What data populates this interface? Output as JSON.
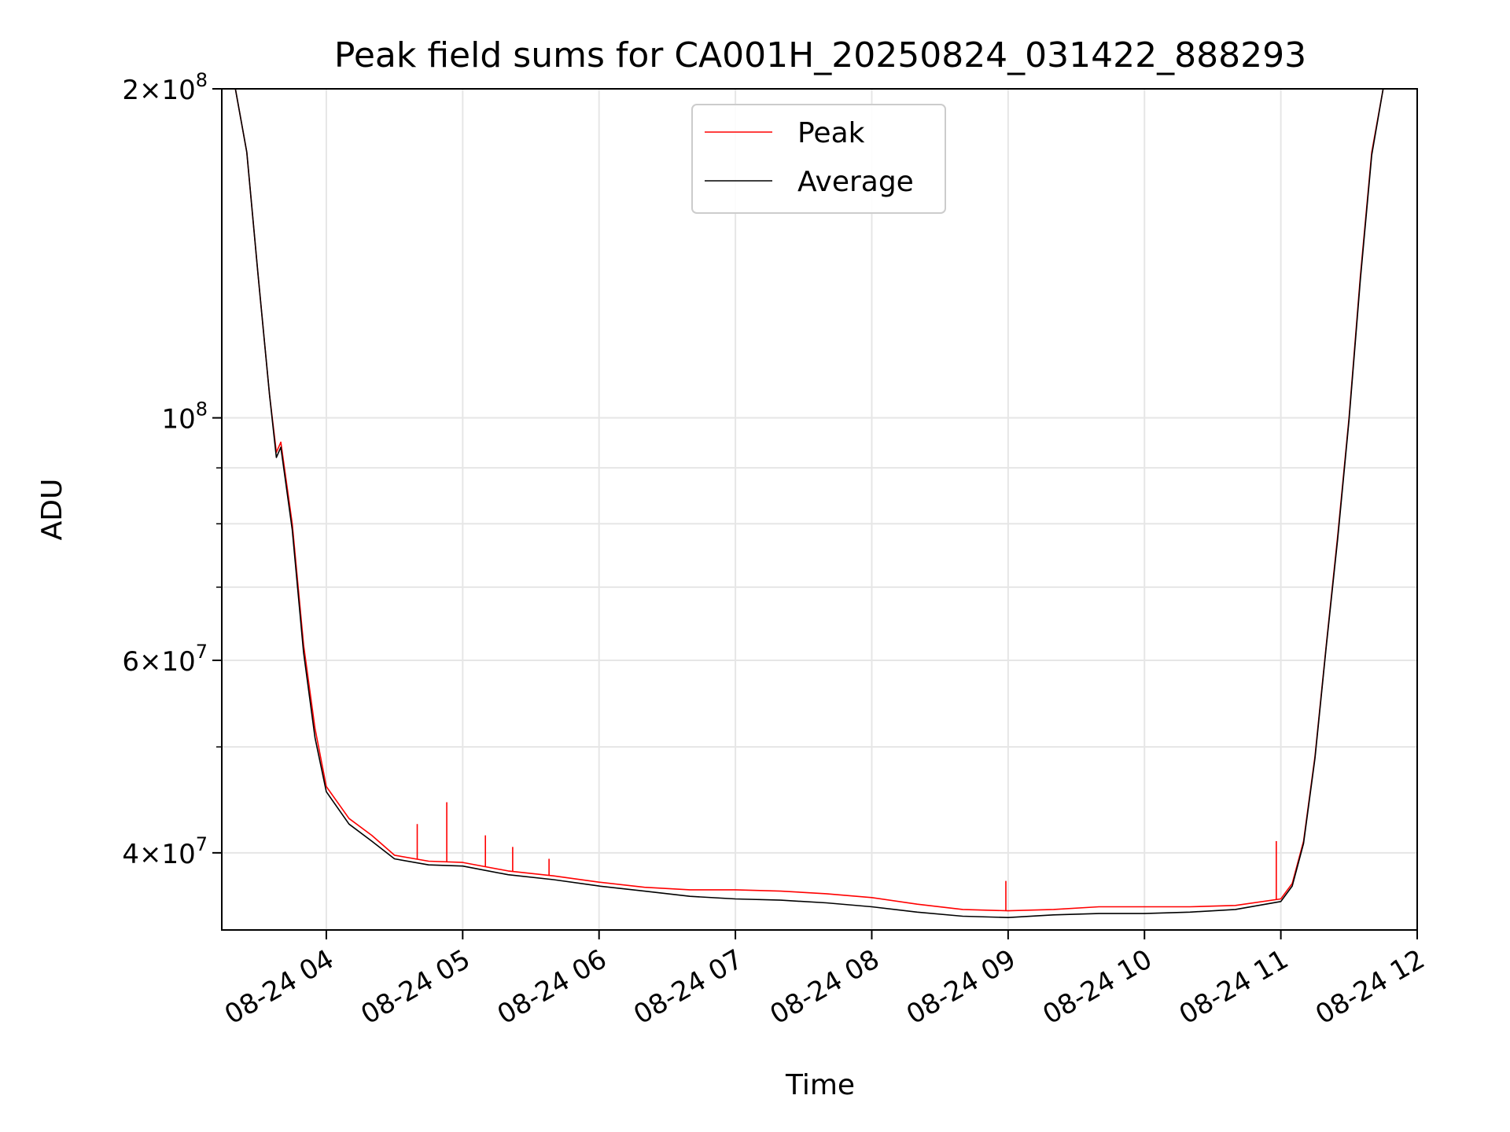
{
  "chart_data": {
    "type": "line",
    "title": "Peak field sums for CA001H_20250824_031422_888293",
    "xlabel": "Time",
    "ylabel": "ADU",
    "yscale": "log",
    "xlim": [
      "2025-08-24T03:14:00",
      "2025-08-24T12:00:00"
    ],
    "ylim": [
      34000000,
      200000000
    ],
    "grid": true,
    "legend_position": "upper center",
    "x_tick_labels": [
      "08-24 04",
      "08-24 05",
      "08-24 06",
      "08-24 07",
      "08-24 08",
      "08-24 09",
      "08-24 10",
      "08-24 11",
      "08-24 12"
    ],
    "x_ticks": [
      "2025-08-24T04:00",
      "2025-08-24T05:00",
      "2025-08-24T06:00",
      "2025-08-24T07:00",
      "2025-08-24T08:00",
      "2025-08-24T09:00",
      "2025-08-24T10:00",
      "2025-08-24T11:00",
      "2025-08-24T12:00"
    ],
    "y_ticks": [
      {
        "value": 40000000,
        "mantissa": "4",
        "exponent": "7"
      },
      {
        "value": 60000000,
        "mantissa": "6",
        "exponent": "7"
      },
      {
        "value": 100000000,
        "mantissa": "",
        "exponent": "8"
      },
      {
        "value": 200000000,
        "mantissa": "2",
        "exponent": "8"
      }
    ],
    "series": [
      {
        "name": "Peak",
        "color": "#ff0000",
        "x": [
          "2025-08-24T03:14",
          "2025-08-24T03:20",
          "2025-08-24T03:25",
          "2025-08-24T03:30",
          "2025-08-24T03:35",
          "2025-08-24T03:38",
          "2025-08-24T03:40",
          "2025-08-24T03:45",
          "2025-08-24T03:50",
          "2025-08-24T03:55",
          "2025-08-24T04:00",
          "2025-08-24T04:10",
          "2025-08-24T04:20",
          "2025-08-24T04:30",
          "2025-08-24T04:45",
          "2025-08-24T05:00",
          "2025-08-24T05:20",
          "2025-08-24T05:40",
          "2025-08-24T06:00",
          "2025-08-24T06:20",
          "2025-08-24T06:40",
          "2025-08-24T07:00",
          "2025-08-24T07:20",
          "2025-08-24T07:40",
          "2025-08-24T08:00",
          "2025-08-24T08:20",
          "2025-08-24T08:40",
          "2025-08-24T09:00",
          "2025-08-24T09:20",
          "2025-08-24T09:40",
          "2025-08-24T10:00",
          "2025-08-24T10:20",
          "2025-08-24T10:40",
          "2025-08-24T11:00",
          "2025-08-24T11:05",
          "2025-08-24T11:10",
          "2025-08-24T11:15",
          "2025-08-24T11:20",
          "2025-08-24T11:25",
          "2025-08-24T11:30",
          "2025-08-24T11:35",
          "2025-08-24T11:40",
          "2025-08-24T11:45",
          "2025-08-24T11:50",
          "2025-08-24T11:55"
        ],
        "y": [
          200000000,
          200000000,
          175000000,
          135000000,
          105000000,
          93000000,
          95000000,
          80000000,
          62000000,
          52000000,
          46000000,
          43000000,
          41500000,
          39800000,
          39300000,
          39200000,
          38500000,
          38100000,
          37600000,
          37200000,
          37000000,
          37000000,
          36900000,
          36700000,
          36400000,
          35900000,
          35500000,
          35400000,
          35500000,
          35700000,
          35700000,
          35700000,
          35800000,
          36300000,
          37500000,
          41000000,
          49000000,
          62000000,
          78000000,
          100000000,
          135000000,
          175000000,
          200000000,
          200000000,
          200000000
        ],
        "spikes": [
          {
            "x": "2025-08-24T04:05",
            "y": 44500000
          },
          {
            "x": "2025-08-24T04:40",
            "y": 42500000
          },
          {
            "x": "2025-08-24T04:53",
            "y": 44500000
          },
          {
            "x": "2025-08-24T05:10",
            "y": 41500000
          },
          {
            "x": "2025-08-24T05:22",
            "y": 40500000
          },
          {
            "x": "2025-08-24T05:38",
            "y": 39500000
          },
          {
            "x": "2025-08-24T08:59",
            "y": 37700000
          },
          {
            "x": "2025-08-24T10:58",
            "y": 41000000
          }
        ]
      },
      {
        "name": "Average",
        "color": "#000000",
        "x": [
          "2025-08-24T03:14",
          "2025-08-24T03:20",
          "2025-08-24T03:25",
          "2025-08-24T03:30",
          "2025-08-24T03:35",
          "2025-08-24T03:38",
          "2025-08-24T03:40",
          "2025-08-24T03:45",
          "2025-08-24T03:50",
          "2025-08-24T03:55",
          "2025-08-24T04:00",
          "2025-08-24T04:10",
          "2025-08-24T04:20",
          "2025-08-24T04:30",
          "2025-08-24T04:45",
          "2025-08-24T05:00",
          "2025-08-24T05:20",
          "2025-08-24T05:40",
          "2025-08-24T06:00",
          "2025-08-24T06:20",
          "2025-08-24T06:40",
          "2025-08-24T07:00",
          "2025-08-24T07:20",
          "2025-08-24T07:40",
          "2025-08-24T08:00",
          "2025-08-24T08:20",
          "2025-08-24T08:40",
          "2025-08-24T09:00",
          "2025-08-24T09:20",
          "2025-08-24T09:40",
          "2025-08-24T10:00",
          "2025-08-24T10:20",
          "2025-08-24T10:40",
          "2025-08-24T11:00",
          "2025-08-24T11:05",
          "2025-08-24T11:10",
          "2025-08-24T11:15",
          "2025-08-24T11:20",
          "2025-08-24T11:25",
          "2025-08-24T11:30",
          "2025-08-24T11:35",
          "2025-08-24T11:40",
          "2025-08-24T11:45",
          "2025-08-24T11:50",
          "2025-08-24T11:55"
        ],
        "y": [
          200000000,
          200000000,
          175000000,
          135000000,
          105000000,
          92000000,
          94000000,
          79000000,
          61000000,
          51000000,
          45500000,
          42500000,
          41000000,
          39500000,
          39000000,
          38900000,
          38200000,
          37800000,
          37300000,
          36900000,
          36500000,
          36300000,
          36200000,
          36000000,
          35700000,
          35300000,
          35000000,
          34900000,
          35100000,
          35200000,
          35200000,
          35300000,
          35500000,
          36100000,
          37300000,
          40800000,
          48800000,
          61800000,
          77500000,
          99500000,
          134000000,
          174000000,
          200000000,
          200000000,
          200000000
        ]
      }
    ]
  }
}
